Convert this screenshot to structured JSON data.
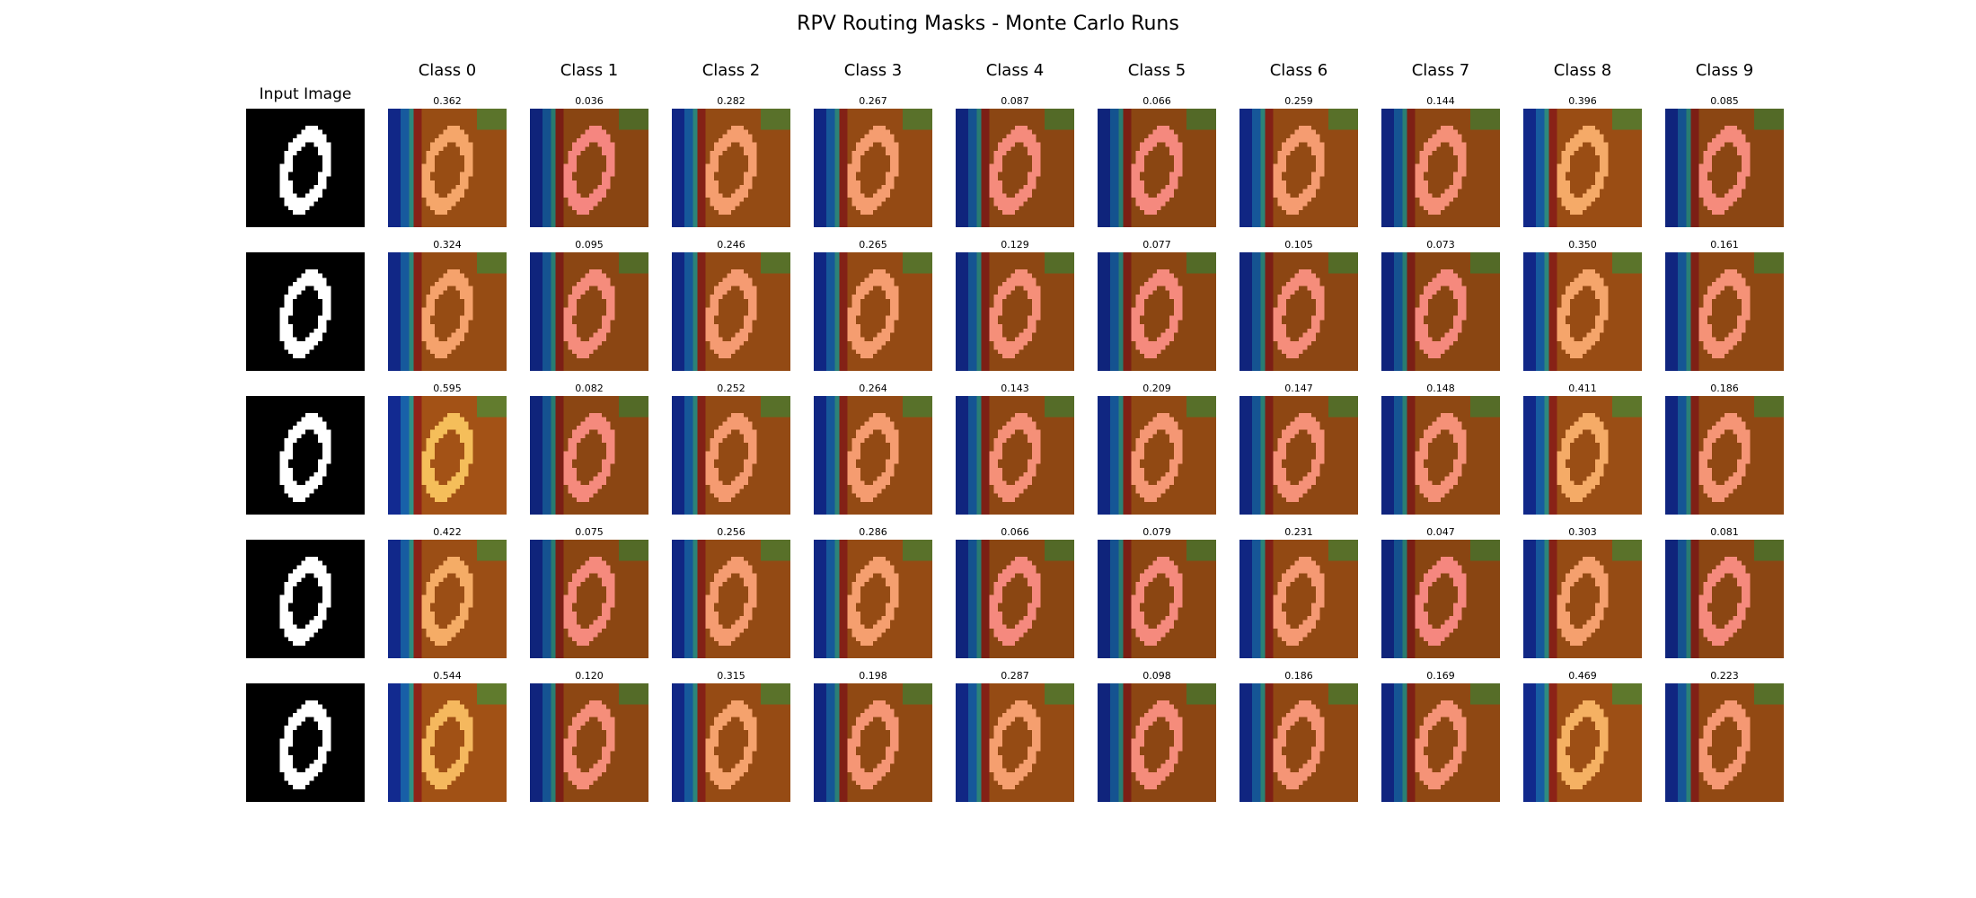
{
  "title": "RPV Routing Masks - Monte Carlo Runs",
  "input_header": "Input Image",
  "class_headers": [
    "Class 0",
    "Class 1",
    "Class 2",
    "Class 3",
    "Class 4",
    "Class 5",
    "Class 6",
    "Class 7",
    "Class 8",
    "Class 9"
  ],
  "chart_data": {
    "type": "heatmap",
    "title": "RPV Routing Masks - Monte Carlo Runs",
    "columns": [
      "Class 0",
      "Class 1",
      "Class 2",
      "Class 3",
      "Class 4",
      "Class 5",
      "Class 6",
      "Class 7",
      "Class 8",
      "Class 9"
    ],
    "runs": [
      {
        "values": [
          0.362,
          0.036,
          0.282,
          0.267,
          0.087,
          0.066,
          0.259,
          0.144,
          0.396,
          0.085
        ]
      },
      {
        "values": [
          0.324,
          0.095,
          0.246,
          0.265,
          0.129,
          0.077,
          0.105,
          0.073,
          0.35,
          0.161
        ]
      },
      {
        "values": [
          0.595,
          0.082,
          0.252,
          0.264,
          0.143,
          0.209,
          0.147,
          0.148,
          0.411,
          0.186
        ]
      },
      {
        "values": [
          0.422,
          0.075,
          0.256,
          0.286,
          0.066,
          0.079,
          0.231,
          0.047,
          0.303,
          0.081
        ]
      },
      {
        "values": [
          0.544,
          0.12,
          0.315,
          0.198,
          0.287,
          0.098,
          0.186,
          0.169,
          0.469,
          0.223
        ]
      }
    ],
    "overlay_colormap": "jet",
    "grid": false
  }
}
